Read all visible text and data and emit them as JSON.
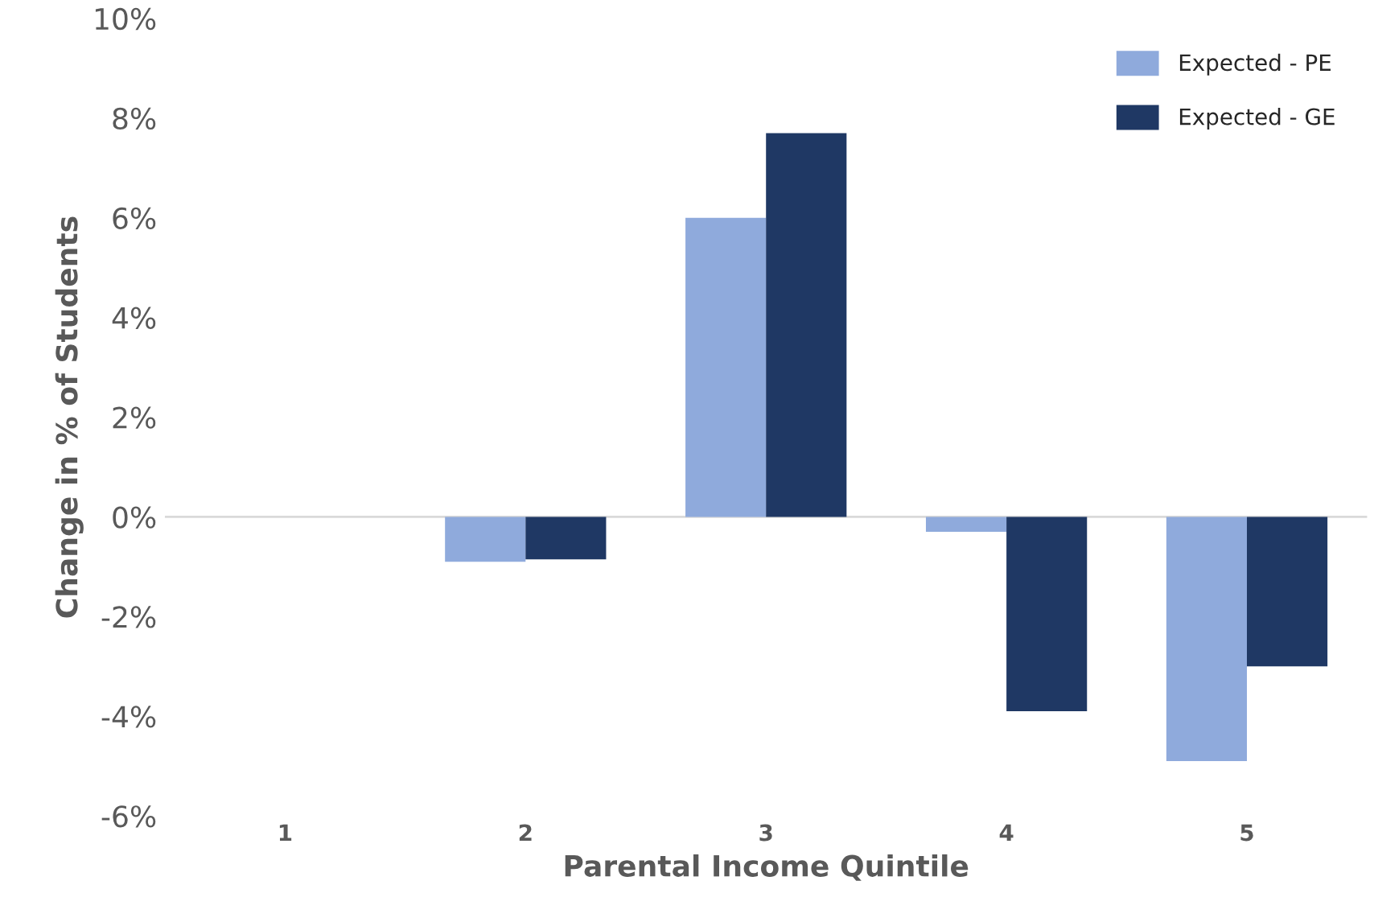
{
  "chart_data": {
    "type": "bar",
    "xlabel": "Parental Income Quintile",
    "ylabel": "Change in % of Students",
    "categories": [
      "1",
      "2",
      "3",
      "4",
      "5"
    ],
    "series": [
      {
        "name": "Expected - PE",
        "color": "#8faadc",
        "values": [
          0,
          -0.9,
          6.0,
          -0.3,
          -4.9
        ]
      },
      {
        "name": "Expected - GE",
        "color": "#1f3864",
        "values": [
          0,
          -0.85,
          7.7,
          -3.9,
          -3.0
        ]
      }
    ],
    "ylim": [
      -6,
      10
    ],
    "yticks": [
      {
        "value": -6,
        "label": "-6%"
      },
      {
        "value": -4,
        "label": "-4%"
      },
      {
        "value": -2,
        "label": "-2%"
      },
      {
        "value": 0,
        "label": "0%"
      },
      {
        "value": 2,
        "label": "2%"
      },
      {
        "value": 4,
        "label": "4%"
      },
      {
        "value": 6,
        "label": "6%"
      },
      {
        "value": 8,
        "label": "8%"
      },
      {
        "value": 10,
        "label": "10%"
      }
    ],
    "ref_lines": [
      {
        "axis": "y",
        "value": 0,
        "color": "#d9d9d9"
      }
    ],
    "grid": false,
    "legend": "top right"
  }
}
